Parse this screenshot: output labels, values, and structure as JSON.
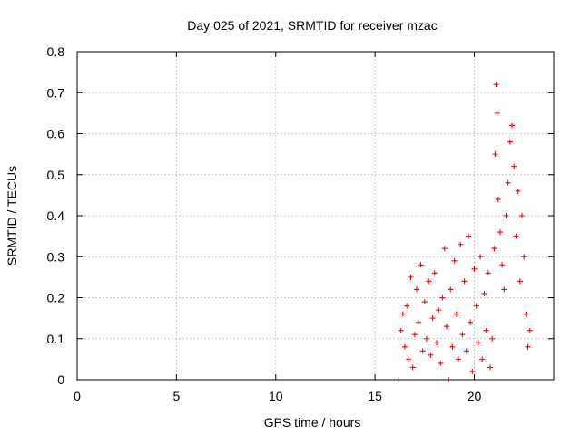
{
  "chart_data": {
    "type": "scatter",
    "title": "Day 025 of 2021, SRMTID for receiver mzac",
    "xlabel": "GPS time / hours",
    "ylabel": "SRMTID / TECUs",
    "xlim": [
      0,
      24
    ],
    "ylim": [
      0,
      0.8
    ],
    "grid": true,
    "x_ticks": [
      0,
      5,
      10,
      15,
      20
    ],
    "x_tick_labels": [
      "0",
      "5",
      "10",
      "15",
      "20"
    ],
    "y_ticks": [
      0,
      0.1,
      0.2,
      0.3,
      0.4,
      0.5,
      0.6,
      0.7,
      0.8
    ],
    "y_tick_labels": [
      "0",
      "0.1",
      "0.2",
      "0.3",
      "0.4",
      "0.5",
      "0.6",
      "0.7",
      "0.8"
    ],
    "marker": "plus",
    "color": "#ff0000",
    "series": [
      {
        "name": "SRMTID",
        "points": [
          [
            16.2,
            0.0
          ],
          [
            16.3,
            0.12
          ],
          [
            16.4,
            0.16
          ],
          [
            16.5,
            0.08
          ],
          [
            16.6,
            0.18
          ],
          [
            16.7,
            0.05
          ],
          [
            16.8,
            0.25
          ],
          [
            16.9,
            0.03
          ],
          [
            17.0,
            0.11
          ],
          [
            17.1,
            0.22
          ],
          [
            17.2,
            0.14
          ],
          [
            17.3,
            0.28
          ],
          [
            17.4,
            0.07
          ],
          [
            17.5,
            0.19
          ],
          [
            17.6,
            0.1
          ],
          [
            17.7,
            0.24
          ],
          [
            17.8,
            0.06
          ],
          [
            17.9,
            0.15
          ],
          [
            18.0,
            0.26
          ],
          [
            18.1,
            0.09
          ],
          [
            18.2,
            0.17
          ],
          [
            18.3,
            0.04
          ],
          [
            18.4,
            0.2
          ],
          [
            18.5,
            0.32
          ],
          [
            18.6,
            0.13
          ],
          [
            18.7,
            0.0
          ],
          [
            18.8,
            0.22
          ],
          [
            18.9,
            0.08
          ],
          [
            19.0,
            0.29
          ],
          [
            19.1,
            0.16
          ],
          [
            19.2,
            0.05
          ],
          [
            19.3,
            0.33
          ],
          [
            19.4,
            0.11
          ],
          [
            19.5,
            0.24
          ],
          [
            19.6,
            0.07
          ],
          [
            19.7,
            0.35
          ],
          [
            19.8,
            0.14
          ],
          [
            19.9,
            0.02
          ],
          [
            20.0,
            0.27
          ],
          [
            20.1,
            0.18
          ],
          [
            20.2,
            0.09
          ],
          [
            20.3,
            0.3
          ],
          [
            20.4,
            0.05
          ],
          [
            20.5,
            0.21
          ],
          [
            20.6,
            0.12
          ],
          [
            20.7,
            0.26
          ],
          [
            20.8,
            0.03
          ],
          [
            20.9,
            0.1
          ],
          [
            21.0,
            0.32
          ],
          [
            21.05,
            0.55
          ],
          [
            21.1,
            0.72
          ],
          [
            21.15,
            0.65
          ],
          [
            21.2,
            0.44
          ],
          [
            21.3,
            0.36
          ],
          [
            21.4,
            0.28
          ],
          [
            21.5,
            0.22
          ],
          [
            21.6,
            0.4
          ],
          [
            21.7,
            0.48
          ],
          [
            21.8,
            0.58
          ],
          [
            21.9,
            0.62
          ],
          [
            22.0,
            0.52
          ],
          [
            22.1,
            0.35
          ],
          [
            22.2,
            0.46
          ],
          [
            22.3,
            0.24
          ],
          [
            22.4,
            0.4
          ],
          [
            22.5,
            0.3
          ],
          [
            22.6,
            0.16
          ],
          [
            22.7,
            0.08
          ],
          [
            22.8,
            0.12
          ]
        ]
      }
    ]
  }
}
